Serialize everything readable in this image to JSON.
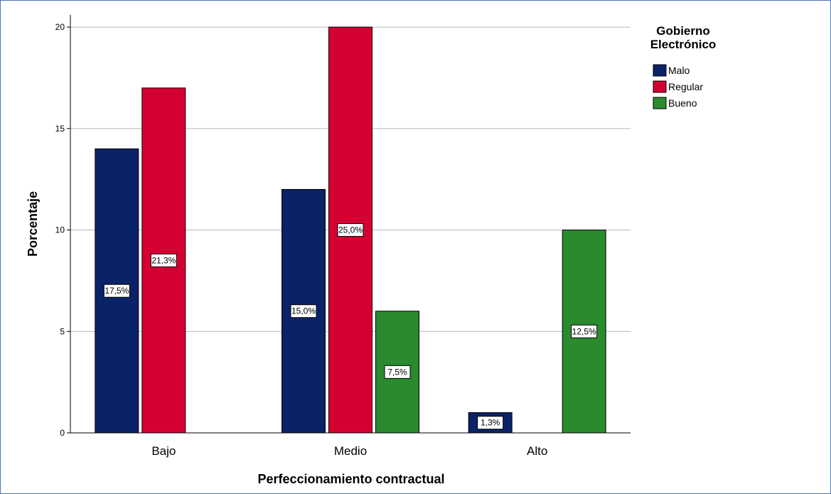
{
  "chart_data": {
    "type": "bar",
    "categories": [
      "Bajo",
      "Medio",
      "Alto"
    ],
    "series": [
      {
        "name": "Malo",
        "values": [
          14,
          12,
          1
        ],
        "labels": [
          "17,5%",
          "15,0%",
          "1,3%"
        ],
        "color": "#0a2268"
      },
      {
        "name": "Regular",
        "values": [
          17,
          20,
          0
        ],
        "labels": [
          "21,3%",
          "25,0%",
          ""
        ],
        "color": "#d50032"
      },
      {
        "name": "Bueno",
        "values": [
          0,
          6,
          10
        ],
        "labels": [
          "",
          "7,5%",
          "12,5%"
        ],
        "color": "#2a8a2e"
      }
    ],
    "xlabel": "Perfeccionamiento contractual",
    "ylabel": "Porcentaje",
    "ylim": [
      0,
      20.6
    ],
    "yticks": [
      0,
      5,
      10,
      15,
      20
    ],
    "grid": true,
    "legend": {
      "title_lines": [
        "Gobierno",
        "Electrónico"
      ],
      "position": "top-right"
    }
  }
}
